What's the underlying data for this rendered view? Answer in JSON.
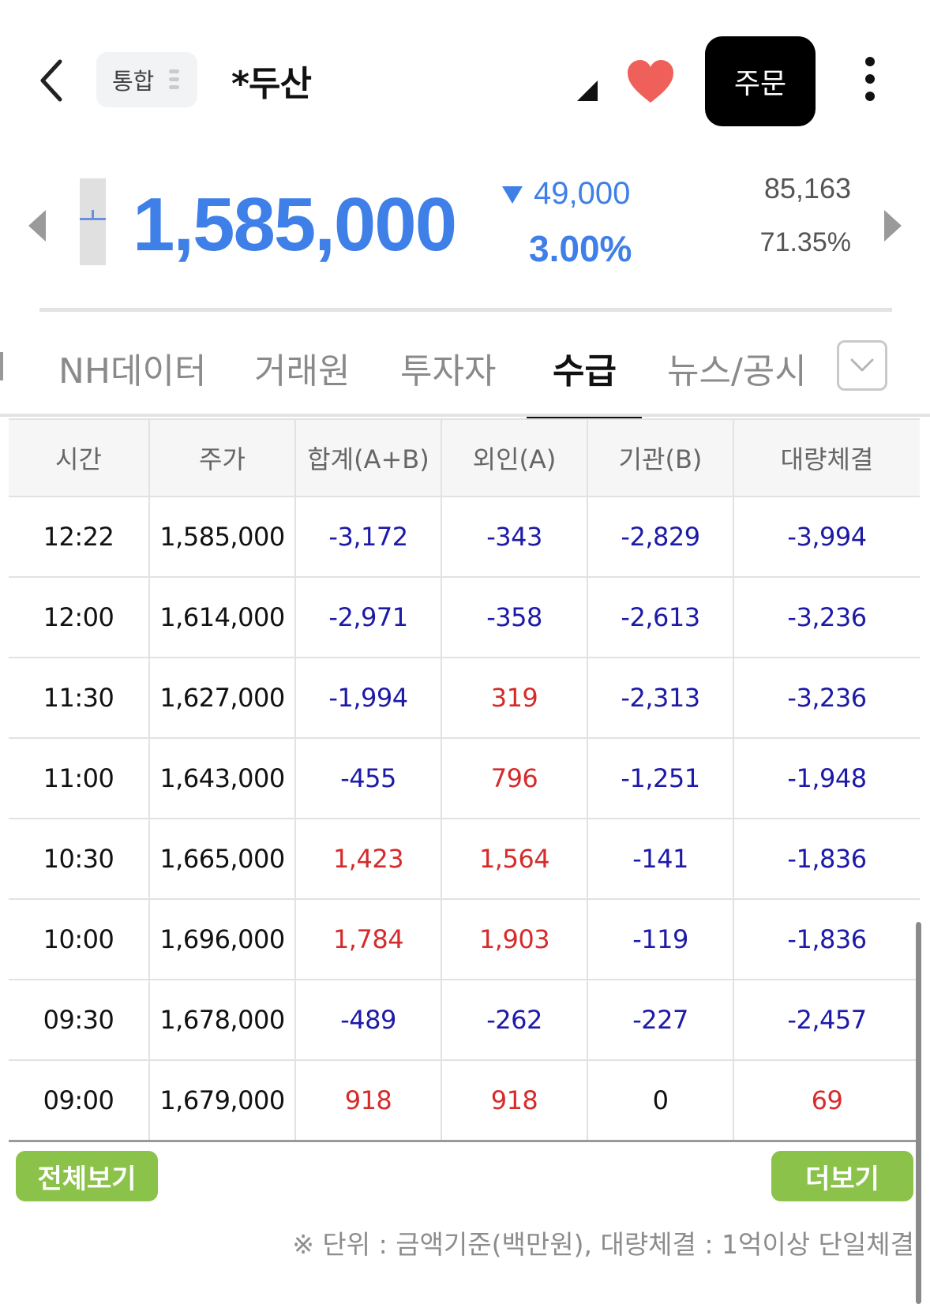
{
  "header": {
    "back_icon": "chevron-left-icon",
    "market_chip": "통합",
    "stock_name": "*두산",
    "favorite_icon": "heart-icon",
    "favorite_color": "#f0605a",
    "order_button": "주문",
    "more_icon": "more-vertical-icon"
  },
  "quote": {
    "price": "1,585,000",
    "change_direction": "down",
    "change_amount": "49,000",
    "change_percent": "3.00%",
    "volume": "85,163",
    "volume_ratio": "71.35%",
    "accent_color": "#3f7fe8"
  },
  "tabs": {
    "items": [
      {
        "label": "NH데이터"
      },
      {
        "label": "거래원"
      },
      {
        "label": "투자자"
      },
      {
        "label": "수급"
      },
      {
        "label": "뉴스/공시"
      }
    ],
    "active": "수급",
    "dropdown_icon": "chevron-down-icon"
  },
  "table": {
    "headers": [
      "시간",
      "주가",
      "합계(A+B)",
      "외인(A)",
      "기관(B)",
      "대량체결"
    ],
    "rows": [
      [
        "12:22",
        "1,585,000",
        "-3,172",
        "-343",
        "-2,829",
        "-3,994"
      ],
      [
        "12:00",
        "1,614,000",
        "-2,971",
        "-358",
        "-2,613",
        "-3,236"
      ],
      [
        "11:30",
        "1,627,000",
        "-1,994",
        "319",
        "-2,313",
        "-3,236"
      ],
      [
        "11:00",
        "1,643,000",
        "-455",
        "796",
        "-1,251",
        "-1,948"
      ],
      [
        "10:30",
        "1,665,000",
        "1,423",
        "1,564",
        "-141",
        "-1,836"
      ],
      [
        "10:00",
        "1,696,000",
        "1,784",
        "1,903",
        "-119",
        "-1,836"
      ],
      [
        "09:30",
        "1,678,000",
        "-489",
        "-262",
        "-227",
        "-2,457"
      ],
      [
        "09:00",
        "1,679,000",
        "918",
        "918",
        "0",
        "69"
      ]
    ],
    "negative_color": "#1d1aa8",
    "positive_color": "#d62b2b"
  },
  "actions": {
    "view_all": "전체보기",
    "load_more": "더보기",
    "button_color": "#8bc24a"
  },
  "footnote": "※ 단위 : 금액기준(백만원), 대량체결 : 1억이상 단일체결"
}
